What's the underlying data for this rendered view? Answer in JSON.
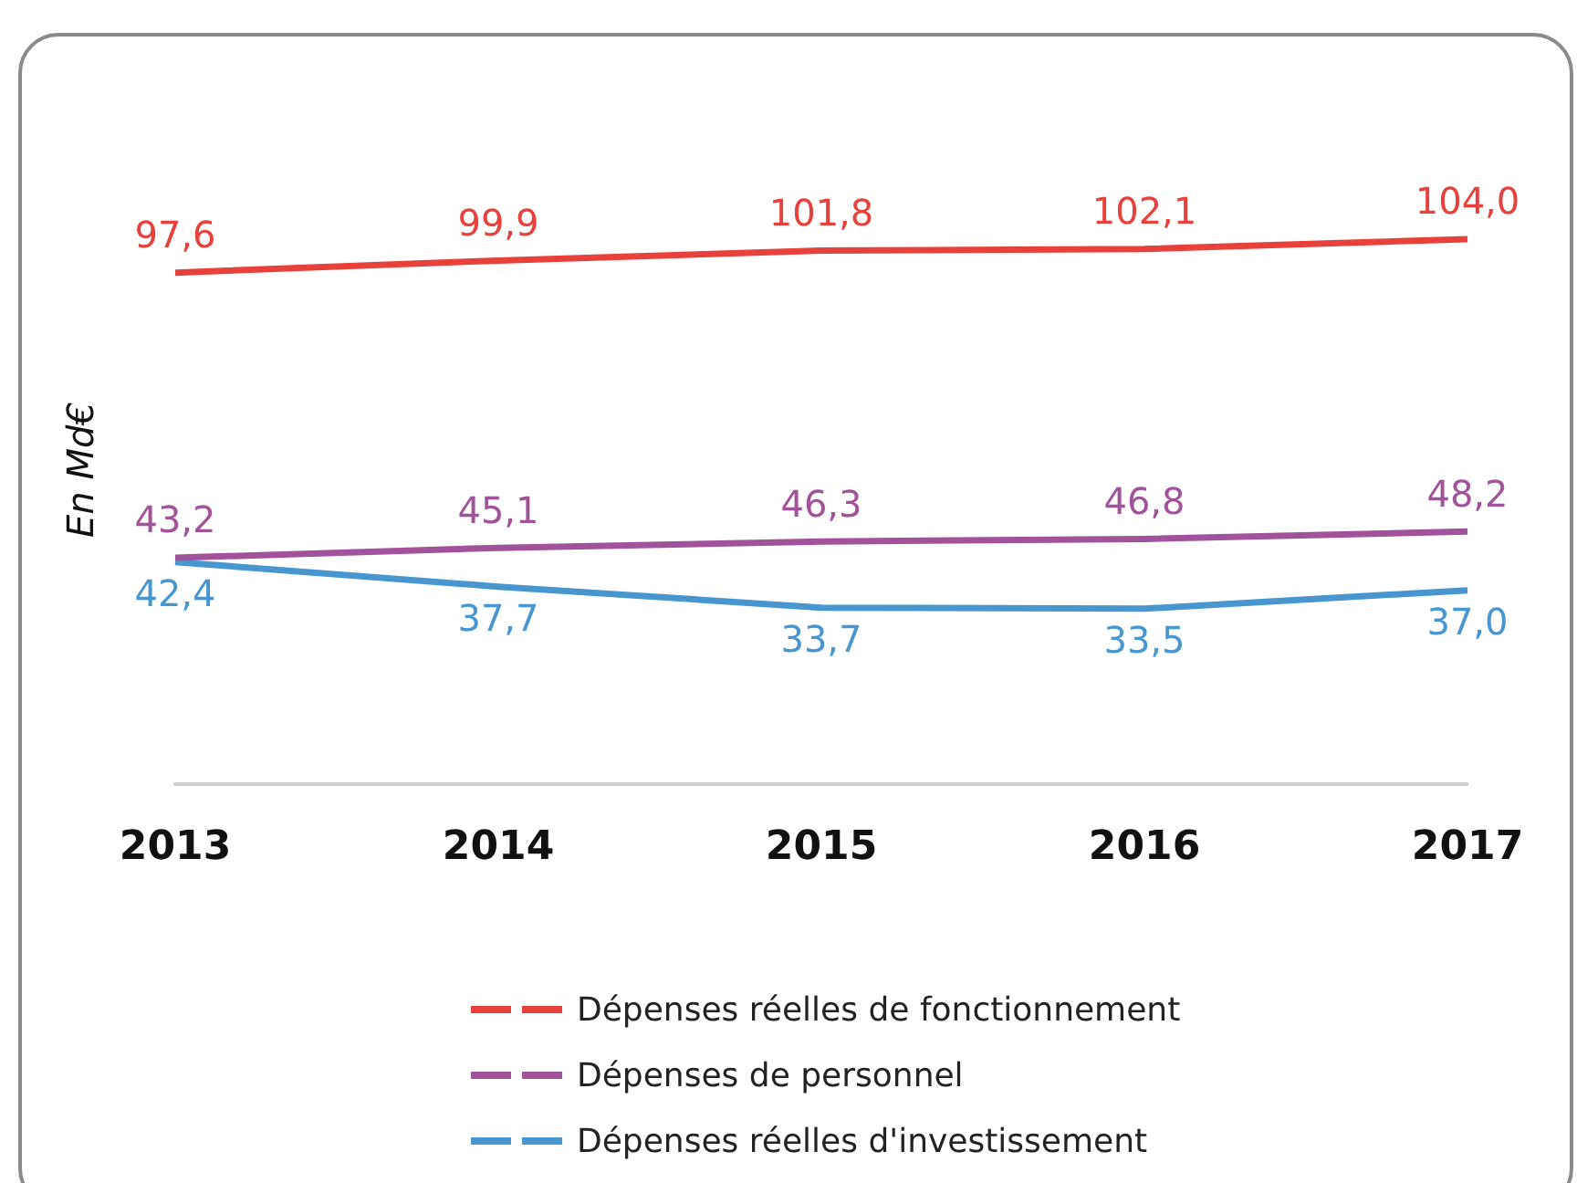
{
  "chart_data": {
    "type": "line",
    "ylabel": "En Md€",
    "categories": [
      "2013",
      "2014",
      "2015",
      "2016",
      "2017"
    ],
    "series": [
      {
        "name": "Dépenses réelles de fonctionnement",
        "color": "#e8403a",
        "values": [
          97.6,
          99.9,
          101.8,
          102.1,
          104.0
        ],
        "value_labels": [
          "97,6",
          "99,9",
          "101,8",
          "102,1",
          "104,0"
        ]
      },
      {
        "name": "Dépenses de personnel",
        "color": "#a2519b",
        "values": [
          43.2,
          45.1,
          46.3,
          46.8,
          48.2
        ],
        "value_labels": [
          "43,2",
          "45,1",
          "46,3",
          "46,8",
          "48,2"
        ]
      },
      {
        "name": "Dépenses réelles d'investissement",
        "color": "#4796d0",
        "values": [
          42.4,
          37.7,
          33.7,
          33.5,
          37.0
        ],
        "value_labels": [
          "42,4",
          "37,7",
          "33,7",
          "33,5",
          "37,0"
        ]
      }
    ],
    "legend": "bottom",
    "marker": "none",
    "line_style": "solid",
    "grid": false
  }
}
